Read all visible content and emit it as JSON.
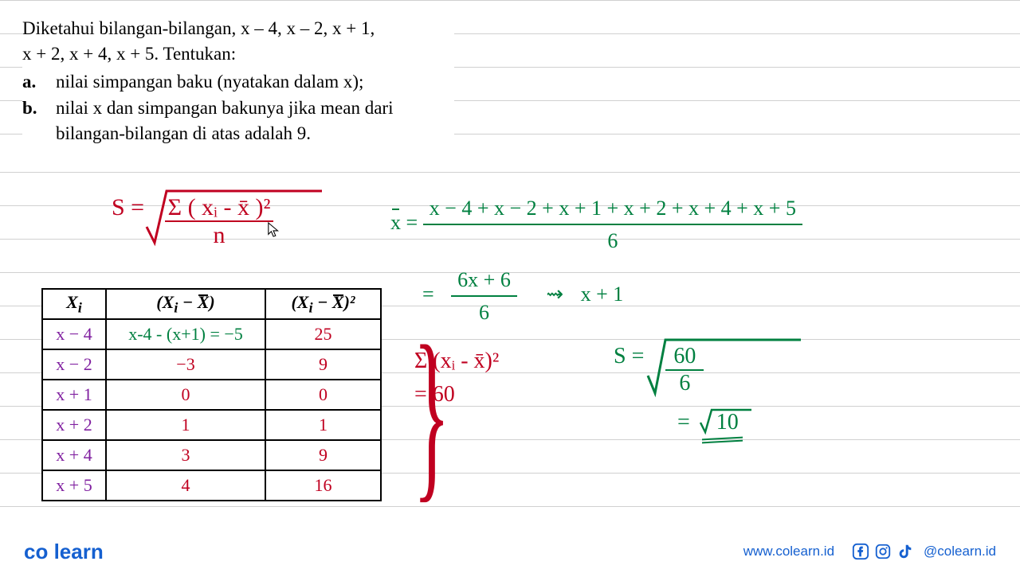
{
  "problem": {
    "intro1": "Diketahui bilangan-bilangan, x – 4, x – 2, x + 1,",
    "intro2": "x + 2, x + 4, x + 5. Tentukan:",
    "a_label": "a.",
    "a_text": "nilai simpangan baku (nyatakan dalam x);",
    "b_label": "b.",
    "b_text": "nilai x dan simpangan bakunya jika mean dari bilangan-bilangan di atas adalah 9."
  },
  "formula_s": {
    "lhs": "S =",
    "num": "Σ ( xᵢ - x̄ )²",
    "den": "n"
  },
  "mean": {
    "lhs": "x̄ =",
    "num": "x − 4 + x − 2 + x + 1 + x + 2 + x + 4 + x + 5",
    "den": "6",
    "eq2": "=",
    "num2": "6x + 6",
    "den2": "6",
    "arrow": "⇝",
    "result": "x + 1"
  },
  "table": {
    "headers": {
      "c1": "Xᵢ",
      "c2": "(Xᵢ − X̄)",
      "c3": "(Xᵢ − X̄)²"
    },
    "rows": [
      {
        "xi": "x − 4",
        "diff": "x-4 - (x+1) = −5",
        "sq": "25",
        "xi_color": "#8020a0",
        "diff_color": "#008040",
        "sq_color": "#c00020"
      },
      {
        "xi": "x − 2",
        "diff": "−3",
        "sq": "9",
        "xi_color": "#8020a0",
        "diff_color": "#c00020",
        "sq_color": "#c00020"
      },
      {
        "xi": "x + 1",
        "diff": "0",
        "sq": "0",
        "xi_color": "#8020a0",
        "diff_color": "#c00020",
        "sq_color": "#c00020"
      },
      {
        "xi": "x + 2",
        "diff": "1",
        "sq": "1",
        "xi_color": "#8020a0",
        "diff_color": "#c00020",
        "sq_color": "#c00020"
      },
      {
        "xi": "x + 4",
        "diff": "3",
        "sq": "9",
        "xi_color": "#8020a0",
        "diff_color": "#c00020",
        "sq_color": "#c00020"
      },
      {
        "xi": "x + 5",
        "diff": "4",
        "sq": "16",
        "xi_color": "#8020a0",
        "diff_color": "#c00020",
        "sq_color": "#c00020"
      }
    ]
  },
  "sum": {
    "line1": "Σ (xᵢ - x̄)²",
    "line2": "= 60"
  },
  "s_result": {
    "lhs": "S =",
    "num": "60",
    "den": "6",
    "eq2": "=",
    "sqrt_val": "10"
  },
  "footer": {
    "logo_co": "co",
    "logo_learn": "learn",
    "url": "www.colearn.id",
    "handle": "@colearn.id"
  },
  "colors": {
    "red": "#c00020",
    "green": "#008040",
    "purple": "#8020a0",
    "blue": "#1560d0"
  }
}
